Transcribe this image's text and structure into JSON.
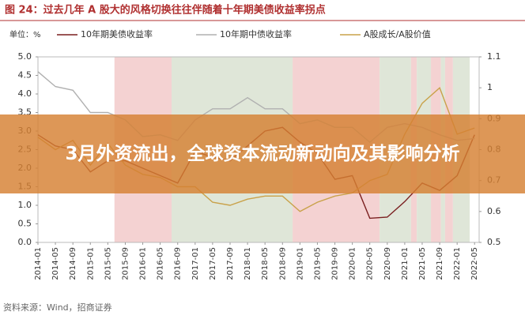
{
  "chart_data": {
    "type": "line",
    "title": "图 24：过去几年 A 股大的风格切换往往伴随着十年期美债收益率拐点",
    "y_label": "单位：%",
    "source": "资料来源：Wind，招商证券",
    "banner": "3月外资流出，全球资本流动新动向及其影响分析",
    "x": [
      2014.0,
      2014.333,
      2014.667,
      2015.0,
      2015.333,
      2015.667,
      2016.0,
      2016.333,
      2016.667,
      2017.0,
      2017.333,
      2017.667,
      2018.0,
      2018.333,
      2018.667,
      2019.0,
      2019.333,
      2019.667,
      2020.0,
      2020.333,
      2020.667,
      2021.0,
      2021.333,
      2021.667,
      2022.0,
      2022.333
    ],
    "xlim": [
      2014.0,
      2022.42
    ],
    "xticks": [
      {
        "value": 2014.0,
        "label": "2014-01"
      },
      {
        "value": 2014.333,
        "label": "2014-05"
      },
      {
        "value": 2014.667,
        "label": "2014-09"
      },
      {
        "value": 2015.0,
        "label": "2015-01"
      },
      {
        "value": 2015.333,
        "label": "2015-05"
      },
      {
        "value": 2015.667,
        "label": "2015-09"
      },
      {
        "value": 2016.0,
        "label": "2016-01"
      },
      {
        "value": 2016.333,
        "label": "2016-05"
      },
      {
        "value": 2016.667,
        "label": "2016-09"
      },
      {
        "value": 2017.0,
        "label": "2017-01"
      },
      {
        "value": 2017.333,
        "label": "2017-05"
      },
      {
        "value": 2017.667,
        "label": "2017-09"
      },
      {
        "value": 2018.0,
        "label": "2018-01"
      },
      {
        "value": 2018.333,
        "label": "2018-05"
      },
      {
        "value": 2018.667,
        "label": "2018-09"
      },
      {
        "value": 2019.0,
        "label": "2019-01"
      },
      {
        "value": 2019.333,
        "label": "2019-05"
      },
      {
        "value": 2019.667,
        "label": "2019-09"
      },
      {
        "value": 2020.0,
        "label": "2020-01"
      },
      {
        "value": 2020.333,
        "label": "2020-05"
      },
      {
        "value": 2020.667,
        "label": "2020-09"
      },
      {
        "value": 2021.0,
        "label": "2021-01"
      },
      {
        "value": 2021.333,
        "label": "2021-05"
      },
      {
        "value": 2021.667,
        "label": "2021-09"
      },
      {
        "value": 2022.0,
        "label": "2022-01"
      },
      {
        "value": 2022.333,
        "label": "2022-05"
      }
    ],
    "ylim": [
      0,
      5
    ],
    "yticks": [
      {
        "value": 0,
        "label": "0.0"
      },
      0.5,
      {
        "value": 1,
        "label": "1.0"
      },
      1.5,
      {
        "value": 2,
        "label": "2.0"
      },
      2.5,
      {
        "value": 3,
        "label": "3.0"
      },
      3.5,
      {
        "value": 4,
        "label": "4.0"
      },
      4.5,
      {
        "value": 5,
        "label": "5.0"
      }
    ],
    "y2lim": [
      0.5,
      1.1
    ],
    "y2ticks": [
      0.5,
      0.6,
      0.7,
      0.8,
      0.9,
      1,
      1.1
    ],
    "bands": [
      {
        "start": 2015.46,
        "end": 2016.55,
        "color": "#f4d2d2"
      },
      {
        "start": 2016.55,
        "end": 2018.86,
        "color": "#dfe6d8"
      },
      {
        "start": 2018.86,
        "end": 2020.52,
        "color": "#f4d2d2"
      },
      {
        "start": 2020.52,
        "end": 2021.12,
        "color": "#dfe6d8"
      },
      {
        "start": 2021.12,
        "end": 2021.23,
        "color": "#f4d2d2"
      },
      {
        "start": 2021.23,
        "end": 2021.5,
        "color": "#dfe6d8"
      },
      {
        "start": 2021.5,
        "end": 2021.69,
        "color": "#f4d2d2"
      },
      {
        "start": 2021.69,
        "end": 2021.77,
        "color": "#dfe6d8"
      },
      {
        "start": 2021.77,
        "end": 2021.92,
        "color": "#f4d2d2"
      },
      {
        "start": 2021.92,
        "end": 2022.24,
        "color": "#dfe6d8"
      }
    ],
    "series": [
      {
        "name": "10年期美债收益率",
        "color": "#7a1f1f",
        "values": [
          2.9,
          2.6,
          2.5,
          1.9,
          2.2,
          2.2,
          2.0,
          1.8,
          1.6,
          2.45,
          2.3,
          2.2,
          2.6,
          3.0,
          3.1,
          2.7,
          2.4,
          1.7,
          1.8,
          0.65,
          0.68,
          1.1,
          1.6,
          1.4,
          1.8,
          2.9
        ]
      },
      {
        "name": "10年期中债收益率",
        "color": "#b0b0b0",
        "values": [
          4.6,
          4.2,
          4.1,
          3.5,
          3.5,
          3.3,
          2.85,
          2.9,
          2.75,
          3.3,
          3.6,
          3.6,
          3.9,
          3.6,
          3.6,
          3.2,
          3.3,
          3.1,
          3.1,
          2.7,
          3.1,
          3.2,
          3.1,
          2.9,
          2.75,
          2.8
        ]
      },
      {
        "name": "A股成长/A股价值",
        "color": "#c9a24a",
        "axis": "y2",
        "values": [
          0.84,
          0.8,
          0.83,
          0.75,
          0.82,
          0.75,
          0.72,
          0.71,
          0.68,
          0.68,
          0.63,
          0.62,
          0.64,
          0.65,
          0.65,
          0.6,
          0.63,
          0.65,
          0.66,
          0.7,
          0.72,
          0.85,
          0.95,
          1.0,
          0.85,
          0.87
        ]
      }
    ]
  }
}
